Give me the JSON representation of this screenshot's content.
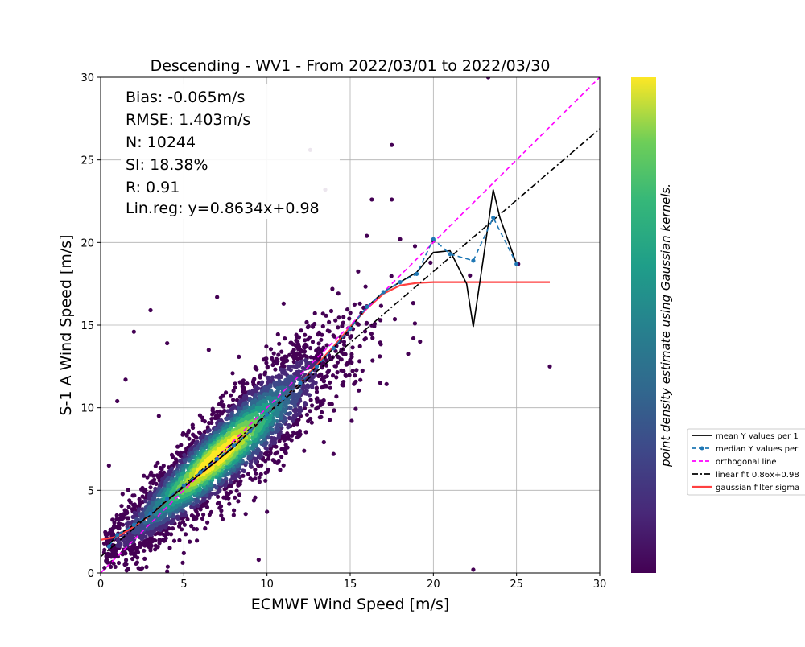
{
  "chart_data": {
    "type": "scatter",
    "title": "Descending - WV1 - From 2022/03/01 to 2022/03/30",
    "xlabel": "ECMWF Wind Speed [m/s]",
    "ylabel": "S-1 A Wind Speed [m/s]",
    "xlim": [
      0,
      30
    ],
    "ylim": [
      0,
      30
    ],
    "xticks": [
      "0",
      "5",
      "10",
      "15",
      "20",
      "25",
      "30"
    ],
    "yticks": [
      "0",
      "5",
      "10",
      "15",
      "20",
      "25",
      "30"
    ],
    "grid": true,
    "colorbar_label": "point density estimate using Gaussian kernels.",
    "colormap": "viridis",
    "stats": [
      "Bias: -0.065m/s",
      "RMSE: 1.403m/s",
      "N: 10244",
      "SI: 18.38%",
      "R: 0.91",
      "Lin.reg: y=0.8634x+0.98"
    ],
    "legend": {
      "placement": "right-outside",
      "entries": [
        "mean Y values per 1",
        "median Y values per",
        "orthogonal line",
        "linear fit 0.86x+0.98",
        "gaussian filter sigma"
      ]
    },
    "series": [
      {
        "name": "mean Y values per 1",
        "color": "#000000",
        "style": "solid",
        "x": [
          0.5,
          1,
          2,
          3,
          4,
          5,
          6,
          7,
          8,
          9,
          10,
          11,
          12,
          13,
          14,
          15,
          16,
          17,
          18,
          19,
          20,
          21,
          22,
          22.4,
          23,
          23.6,
          24,
          25
        ],
        "y": [
          1.7,
          2.3,
          2.9,
          3.5,
          4.4,
          5.2,
          6.0,
          6.8,
          7.6,
          8.6,
          9.6,
          10.6,
          11.5,
          12.5,
          13.6,
          14.8,
          16.1,
          17.0,
          17.6,
          18.2,
          19.4,
          19.5,
          17.5,
          14.9,
          19.0,
          23.2,
          21.5,
          18.7
        ]
      },
      {
        "name": "median Y values per",
        "color": "#1f77b4",
        "style": "dashed-markers",
        "x": [
          0.5,
          1,
          2,
          3,
          4,
          5,
          6,
          7,
          8,
          9,
          10,
          11,
          12,
          13,
          14,
          15,
          16,
          17,
          18,
          19,
          20,
          21,
          22.4,
          23.6,
          25
        ],
        "y": [
          1.6,
          2.3,
          2.9,
          3.6,
          4.5,
          5.3,
          6.1,
          6.9,
          7.7,
          8.6,
          9.6,
          10.6,
          11.5,
          12.5,
          13.6,
          14.8,
          16.1,
          17.0,
          17.6,
          18.1,
          20.2,
          19.3,
          18.9,
          21.5,
          18.7
        ]
      },
      {
        "name": "orthogonal line",
        "color": "#ff00ff",
        "style": "dashed",
        "x": [
          0,
          30
        ],
        "y": [
          0,
          30
        ]
      },
      {
        "name": "linear fit 0.86x+0.98",
        "color": "#000000",
        "style": "dashdot",
        "x": [
          0,
          30
        ],
        "y": [
          0.98,
          26.88
        ]
      },
      {
        "name": "gaussian filter sigma",
        "color": "#ff4040",
        "style": "solid",
        "x": [
          0,
          1,
          2,
          3,
          4,
          5,
          6,
          7,
          8,
          9,
          10,
          11,
          12,
          13,
          14,
          15,
          16,
          17,
          18,
          19,
          20,
          21,
          22,
          23,
          24,
          25,
          26,
          27
        ],
        "y": [
          2.0,
          2.2,
          2.8,
          3.5,
          4.4,
          5.2,
          6.0,
          6.8,
          7.7,
          8.6,
          9.6,
          10.6,
          11.5,
          12.6,
          13.7,
          14.9,
          16.0,
          16.9,
          17.4,
          17.55,
          17.6,
          17.6,
          17.6,
          17.6,
          17.6,
          17.6,
          17.6,
          17.6
        ]
      }
    ],
    "outliers": {
      "x": [
        1.5,
        3,
        2,
        4,
        12.6,
        17.5,
        13.5,
        16.3,
        17.5,
        20,
        22.2,
        23.3,
        25.1,
        27,
        22.4,
        10,
        1.5,
        2.5,
        1,
        0.5,
        5,
        8,
        18.8,
        19.2,
        6.5,
        11,
        7,
        14,
        3.5,
        9.5,
        4,
        16,
        18
      ],
      "y": [
        11.7,
        15.9,
        14.6,
        13.9,
        25.6,
        25.9,
        23.2,
        22.6,
        22.6,
        20.1,
        18.0,
        30.0,
        18.7,
        12.5,
        0.2,
        3.7,
        0.6,
        0.3,
        10.4,
        6.5,
        1.2,
        3.5,
        14.2,
        14.0,
        13.5,
        16.3,
        16.7,
        7.2,
        9.5,
        0.8,
        0.1,
        20.4,
        20.2
      ]
    },
    "density_cloud": {
      "slope": 0.86,
      "intercept": 0.98,
      "x_range": [
        0.2,
        20
      ],
      "count": 10244
    }
  }
}
